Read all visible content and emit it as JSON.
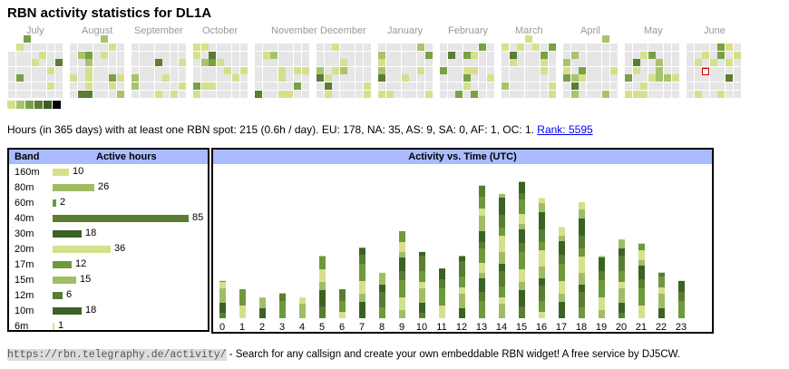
{
  "header": {
    "title": "RBN activity statistics for DL1A"
  },
  "calendar": {
    "months": [
      "July",
      "August",
      "September",
      "October",
      "November",
      "December",
      "January",
      "February",
      "March",
      "April",
      "May",
      "June"
    ],
    "legend_colors": [
      "#d6e08a",
      "#a8c46a",
      "#7aa045",
      "#5a7d32",
      "#3a5f24",
      "#000000"
    ],
    "empty_color": "#e6e6e6",
    "today_marker_color": "#cc0000"
  },
  "summary": {
    "text": "Hours (in 365 days) with at least one RBN spot: 215 (0.6h / day). EU: 178, NA: 35, AS: 9, SA: 0, AF: 1, OC: 1. ",
    "rank_label": "Rank: 5595"
  },
  "bands_table": {
    "col_band": "Band",
    "col_hours": "Active hours",
    "rows": [
      {
        "band": "160m",
        "hours": 10,
        "color": "#d6e08a"
      },
      {
        "band": "80m",
        "hours": 26,
        "color": "#a0bd66"
      },
      {
        "band": "60m",
        "hours": 2,
        "color": "#6d9a3c"
      },
      {
        "band": "40m",
        "hours": 85,
        "color": "#5a7d32"
      },
      {
        "band": "30m",
        "hours": 18,
        "color": "#3a6224"
      },
      {
        "band": "20m",
        "hours": 36,
        "color": "#d6e08a"
      },
      {
        "band": "17m",
        "hours": 12,
        "color": "#6d9a3c"
      },
      {
        "band": "15m",
        "hours": 15,
        "color": "#a0bd66"
      },
      {
        "band": "12m",
        "hours": 6,
        "color": "#5a7d32"
      },
      {
        "band": "10m",
        "hours": 18,
        "color": "#3a6224"
      },
      {
        "band": "6m",
        "hours": 1,
        "color": "#d6e08a"
      }
    ]
  },
  "chart_data": {
    "type": "bar",
    "title": "Activity vs. Time (UTC)",
    "categories": [
      "0",
      "1",
      "2",
      "3",
      "4",
      "5",
      "6",
      "7",
      "8",
      "9",
      "10",
      "11",
      "12",
      "13",
      "14",
      "15",
      "16",
      "17",
      "18",
      "19",
      "20",
      "21",
      "22",
      "23"
    ],
    "values": [
      9,
      7,
      5,
      6,
      5,
      15,
      7,
      17,
      11,
      21,
      16,
      12,
      15,
      32,
      30,
      33,
      29,
      22,
      28,
      15,
      19,
      18,
      11,
      9
    ]
  },
  "footer": {
    "url": "https://rbn.telegraphy.de/activity/",
    "text": " - Search for any callsign and create your own embeddable RBN widget! A free service by DJ5CW."
  }
}
